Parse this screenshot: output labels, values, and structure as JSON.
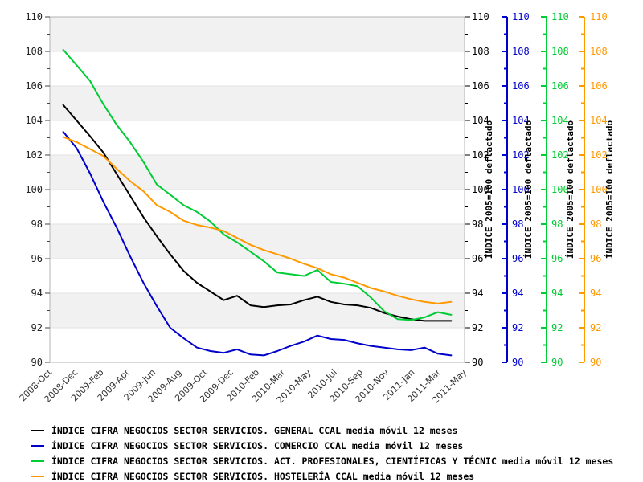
{
  "chart_data": {
    "type": "line",
    "title": "",
    "background_color": "#ffffff",
    "band_color": "#f1f1f1",
    "grid_color": "#e2e2e2",
    "border_color": "#b3b3b3",
    "ylim": [
      90,
      110
    ],
    "y_major_step": 2,
    "y_minor_step": 1,
    "y_tick_labels": [
      "90",
      "92",
      "94",
      "96",
      "98",
      "100",
      "102",
      "104",
      "106",
      "108",
      "110"
    ],
    "x_tick_labels": [
      "2008-Oct",
      "2008-Dec",
      "2009-Feb",
      "2009-Apr",
      "2009-Jun",
      "2009-Aug",
      "2009-Oct",
      "2009-Dec",
      "2010-Feb",
      "2010-Mar",
      "2010-May",
      "2010-Jul",
      "2010-Sep",
      "2010-Nov",
      "2011-Jan",
      "2011-Mar",
      "2011-May"
    ],
    "x_monthly": [
      "2008-11",
      "2008-12",
      "2009-01",
      "2009-02",
      "2009-03",
      "2009-04",
      "2009-05",
      "2009-06",
      "2009-07",
      "2009-08",
      "2009-09",
      "2009-10",
      "2009-11",
      "2009-12",
      "2010-01",
      "2010-02",
      "2010-03",
      "2010-04",
      "2010-05",
      "2010-06",
      "2010-07",
      "2010-08",
      "2010-09",
      "2010-10",
      "2010-11",
      "2010-12",
      "2011-01",
      "2011-02",
      "2011-03",
      "2011-04"
    ],
    "right_axis_title": "ÍNDICE 2005=100 deflactado",
    "right_axes": [
      {
        "series": "general",
        "color": "#000000",
        "title": "ÍNDICE 2005=100 deflactado"
      },
      {
        "series": "comercio",
        "color": "#0000cc",
        "title": "ÍNDICE 2005=100 deflactado"
      },
      {
        "series": "act_profesionales",
        "color": "#00cc33",
        "title": "ÍNDICE 2005=100 deflactado"
      },
      {
        "series": "hosteleria",
        "color": "#ff9900",
        "title": "ÍNDICE 2005=100 deflactado"
      }
    ],
    "series": [
      {
        "name": "ÍNDICE CIFRA NEGOCIOS SECTOR SERVICIOS. GENERAL CCAL media móvil 12 meses",
        "color": "#000000",
        "values": [
          104.9,
          104.0,
          103.1,
          102.15,
          100.9,
          99.65,
          98.4,
          97.3,
          96.25,
          95.3,
          94.6,
          94.1,
          93.6,
          93.85,
          93.3,
          93.2,
          93.3,
          93.35,
          93.6,
          93.8,
          93.5,
          93.35,
          93.3,
          93.15,
          92.85,
          92.65,
          92.5,
          92.4,
          92.4,
          92.4
        ]
      },
      {
        "name": "ÍNDICE CIFRA NEGOCIOS SECTOR SERVICIOS. COMERCIO CCAL media móvil 12 meses",
        "color": "#0000cc",
        "values": [
          103.35,
          102.4,
          100.95,
          99.3,
          97.8,
          96.15,
          94.6,
          93.25,
          92.0,
          91.4,
          90.85,
          90.65,
          90.55,
          90.75,
          90.45,
          90.4,
          90.65,
          90.95,
          91.2,
          91.55,
          91.35,
          91.3,
          91.1,
          90.95,
          90.85,
          90.75,
          90.7,
          90.85,
          90.5,
          90.4
        ]
      },
      {
        "name": "ÍNDICE CIFRA NEGOCIOS SECTOR SERVICIOS. ACT. PROFESIONALES, CIENTÍFICAS Y TÉCNIC media móvil 12 meses",
        "color": "#00cc33",
        "values": [
          108.1,
          107.2,
          106.3,
          104.95,
          103.75,
          102.75,
          101.6,
          100.3,
          99.7,
          99.1,
          98.7,
          98.15,
          97.4,
          96.95,
          96.4,
          95.85,
          95.2,
          95.1,
          95.0,
          95.35,
          94.65,
          94.55,
          94.4,
          93.75,
          92.95,
          92.5,
          92.45,
          92.6,
          92.9,
          92.75
        ]
      },
      {
        "name": "ÍNDICE CIFRA NEGOCIOS SECTOR SERVICIOS. HOSTELERÍA CCAL media móvil 12 meses",
        "color": "#ff9900",
        "values": [
          103.05,
          102.75,
          102.35,
          101.95,
          101.2,
          100.5,
          99.9,
          99.1,
          98.7,
          98.2,
          97.95,
          97.8,
          97.6,
          97.2,
          96.8,
          96.5,
          96.25,
          96.0,
          95.7,
          95.45,
          95.1,
          94.9,
          94.6,
          94.3,
          94.1,
          93.85,
          93.65,
          93.5,
          93.4,
          93.5
        ]
      }
    ],
    "legend": [
      {
        "label": "ÍNDICE CIFRA NEGOCIOS SECTOR SERVICIOS. GENERAL CCAL media móvil 12 meses",
        "color": "#000000"
      },
      {
        "label": "ÍNDICE CIFRA NEGOCIOS SECTOR SERVICIOS. COMERCIO CCAL media móvil 12 meses",
        "color": "#0000cc"
      },
      {
        "label": "ÍNDICE CIFRA NEGOCIOS SECTOR SERVICIOS. ACT. PROFESIONALES, CIENTÍFICAS Y TÉCNIC media móvil 12 meses",
        "color": "#00cc33"
      },
      {
        "label": "ÍNDICE CIFRA NEGOCIOS SECTOR SERVICIOS. HOSTELERÍA CCAL media móvil 12 meses",
        "color": "#ff9900"
      }
    ]
  }
}
